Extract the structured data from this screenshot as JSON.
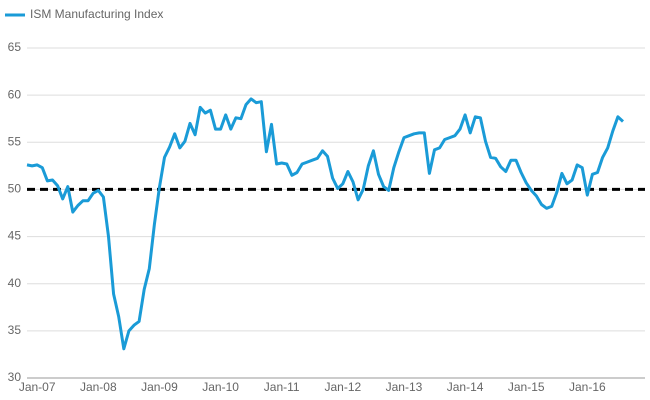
{
  "chart_data": {
    "type": "line",
    "series": [
      {
        "name": "ISM Manufacturing Index",
        "color": "#1a9bd7",
        "values": [
          52.6,
          52.5,
          52.6,
          52.3,
          50.9,
          51.0,
          50.4,
          49.0,
          50.3,
          47.6,
          48.3,
          48.8,
          48.8,
          49.6,
          49.9,
          49.2,
          45.0,
          38.9,
          36.5,
          33.1,
          35.0,
          35.6,
          36.0,
          39.4,
          41.6,
          46.3,
          50.2,
          53.4,
          54.5,
          55.9,
          54.4,
          55.1,
          57.0,
          55.8,
          58.7,
          58.1,
          58.4,
          56.4,
          56.4,
          57.9,
          56.4,
          57.6,
          57.5,
          59.0,
          59.6,
          59.2,
          59.3,
          54.0,
          56.9,
          52.7,
          52.8,
          52.7,
          51.5,
          51.8,
          52.7,
          52.9,
          53.1,
          53.3,
          54.1,
          53.5,
          51.2,
          50.1,
          50.6,
          51.9,
          50.8,
          48.9,
          50.0,
          52.5,
          54.1,
          51.6,
          50.3,
          49.9,
          52.3,
          54.0,
          55.5,
          55.7,
          55.9,
          56.0,
          56.0,
          51.7,
          54.2,
          54.4,
          55.3,
          55.5,
          55.7,
          56.4,
          57.9,
          56.0,
          57.7,
          57.6,
          55.1,
          53.4,
          53.3,
          52.4,
          51.9,
          53.1,
          53.1,
          51.8,
          50.7,
          49.9,
          49.3,
          48.4,
          48.0,
          48.2,
          49.7,
          51.7,
          50.6,
          51.0,
          52.6,
          52.3,
          49.4,
          51.6,
          51.8,
          53.4,
          54.4,
          56.2,
          57.7,
          57.2
        ]
      }
    ],
    "categories": [
      null,
      null,
      "Jan-07",
      null,
      null,
      null,
      null,
      null,
      null,
      null,
      null,
      null,
      null,
      null,
      "Jan-08",
      null,
      null,
      null,
      null,
      null,
      null,
      null,
      null,
      null,
      null,
      null,
      "Jan-09",
      null,
      null,
      null,
      null,
      null,
      null,
      null,
      null,
      null,
      null,
      null,
      "Jan-10",
      null,
      null,
      null,
      null,
      null,
      null,
      null,
      null,
      null,
      null,
      null,
      "Jan-11",
      null,
      null,
      null,
      null,
      null,
      null,
      null,
      null,
      null,
      null,
      null,
      "Jan-12",
      null,
      null,
      null,
      null,
      null,
      null,
      null,
      null,
      null,
      null,
      null,
      "Jan-13",
      null,
      null,
      null,
      null,
      null,
      null,
      null,
      null,
      null,
      null,
      null,
      "Jan-14",
      null,
      null,
      null,
      null,
      null,
      null,
      null,
      null,
      null,
      null,
      null,
      "Jan-15",
      null,
      null,
      null,
      null,
      null,
      null,
      null,
      null,
      null,
      null,
      null,
      "Jan-16",
      null,
      null,
      null,
      null,
      null,
      null,
      null
    ],
    "ylim": [
      30,
      65
    ],
    "yticks": [
      30,
      35,
      40,
      45,
      50,
      55,
      60,
      65
    ],
    "grid": true,
    "reference_line": 50,
    "legend": "top-left"
  }
}
